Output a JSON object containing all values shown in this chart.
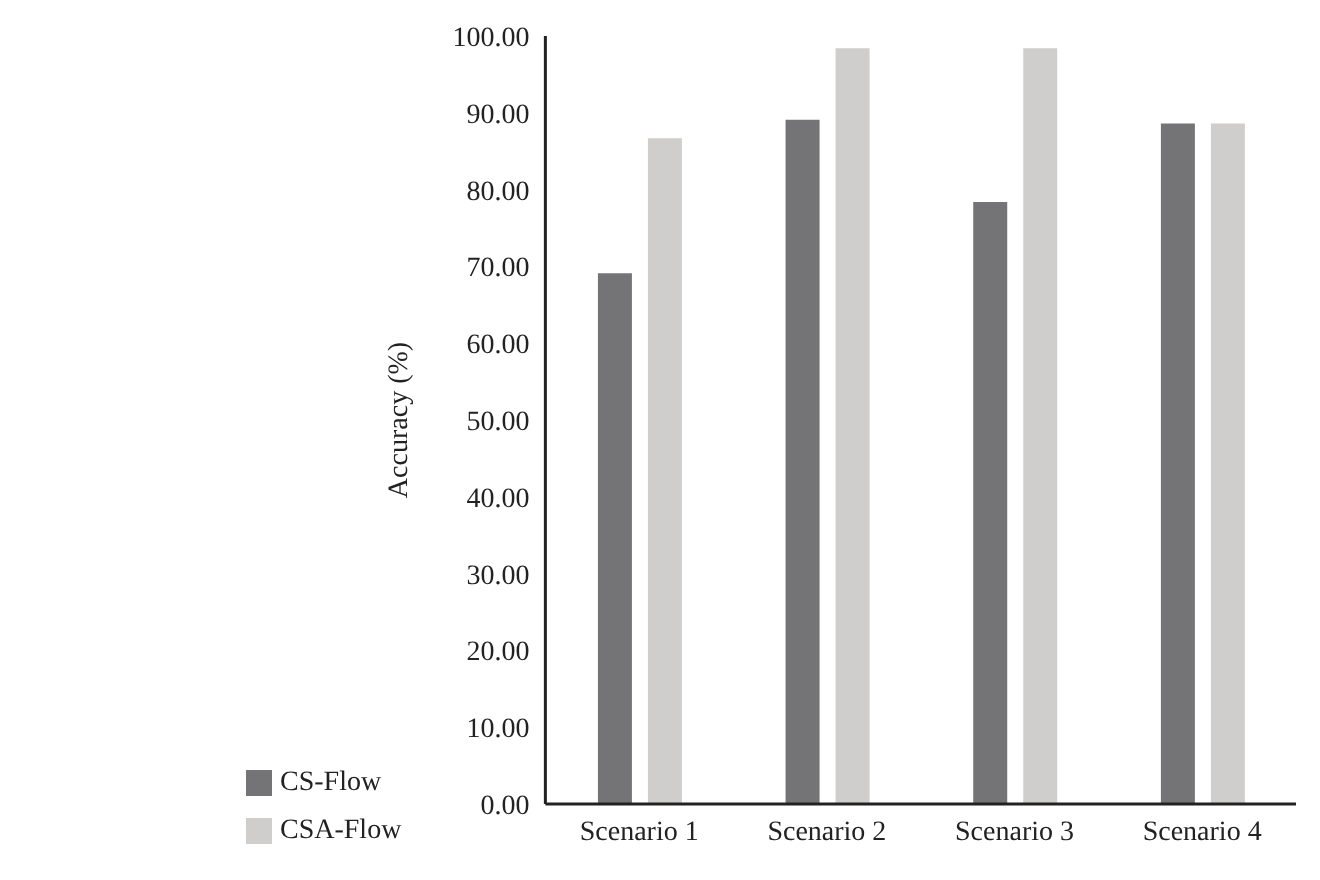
{
  "chart_data": {
    "type": "bar",
    "ylabel": "Accuracy (%)",
    "categories": [
      "Scenario 1",
      "Scenario 2",
      "Scenario 3",
      "Scenario 4"
    ],
    "series": [
      {
        "name": "CS-Flow",
        "color": "#747477",
        "values": [
          69.1,
          89.1,
          78.4,
          88.6
        ]
      },
      {
        "name": "CSA-Flow",
        "color": "#cfcecd",
        "values": [
          86.7,
          98.4,
          98.4,
          88.6
        ]
      }
    ],
    "ylim": [
      0,
      100
    ],
    "yticks": [
      {
        "value": 0,
        "label": "0.00"
      },
      {
        "value": 10,
        "label": "10.00"
      },
      {
        "value": 20,
        "label": "20.00"
      },
      {
        "value": 30,
        "label": "30.00"
      },
      {
        "value": 40,
        "label": "40.00"
      },
      {
        "value": 50,
        "label": "50.00"
      },
      {
        "value": 60,
        "label": "60.00"
      },
      {
        "value": 70,
        "label": "70.00"
      },
      {
        "value": 80,
        "label": "80.00"
      },
      {
        "value": 90,
        "label": "90.00"
      },
      {
        "value": 100,
        "label": "100.00"
      }
    ],
    "grid": false,
    "legend": "bottom left"
  }
}
